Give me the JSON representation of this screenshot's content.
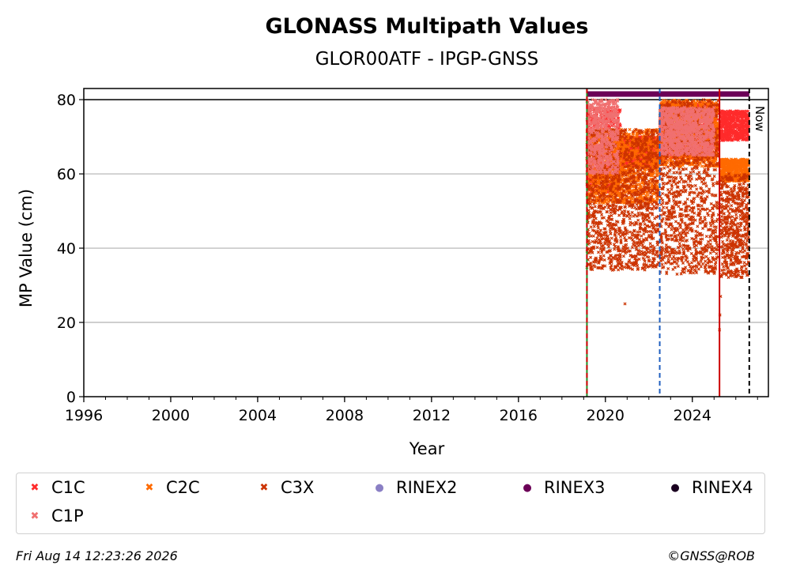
{
  "chart_data": {
    "type": "scatter",
    "title": "GLONASS Multipath Values",
    "subtitle": "GLOR00ATF - IPGP-GNSS",
    "xlabel": "Year",
    "ylabel": "MP Value (cm)",
    "xlim": [
      1996,
      2027.5
    ],
    "ylim": [
      0,
      83
    ],
    "x_ticks": [
      "1996",
      "2000",
      "2004",
      "2008",
      "2012",
      "2016",
      "2020",
      "2024"
    ],
    "y_ticks": [
      "0",
      "20",
      "40",
      "60",
      "80"
    ],
    "grid": "horizontal",
    "threshold_line": 80,
    "now_label": "Now",
    "vertical_lines": [
      {
        "x": 2019.15,
        "color": "#228b22",
        "style": "solid"
      },
      {
        "x": 2019.15,
        "color": "#cc0000",
        "style": "dashed"
      },
      {
        "x": 2022.5,
        "color": "#1f5fbf",
        "style": "dashed"
      },
      {
        "x": 2025.25,
        "color": "#cc0000",
        "style": "solid"
      },
      {
        "x": 2026.62,
        "color": "#000000",
        "style": "dashed"
      }
    ],
    "rinex_bar": {
      "series": "RINEX3",
      "x_start": 2019.15,
      "x_end": 2026.62,
      "y": 81.5
    },
    "series": [
      {
        "name": "C1C",
        "color": "#ff2b2b",
        "marker": "x",
        "segments": [
          {
            "x_start": 2019.15,
            "x_end": 2020.7,
            "y_range": [
              55,
              78
            ]
          },
          {
            "x_start": 2020.7,
            "x_end": 2022.45,
            "y_range": [
              62,
              70
            ]
          },
          {
            "x_start": 2022.5,
            "x_end": 2025.2,
            "y_range": [
              64,
              79
            ]
          },
          {
            "x_start": 2025.3,
            "x_end": 2026.6,
            "y_range": [
              69,
              77
            ]
          }
        ]
      },
      {
        "name": "C2C",
        "color": "#ff6a00",
        "marker": "x",
        "segments": [
          {
            "x_start": 2019.15,
            "x_end": 2022.45,
            "y_range": [
              52,
              72
            ]
          },
          {
            "x_start": 2022.5,
            "x_end": 2025.2,
            "y_range": [
              62,
              80
            ]
          },
          {
            "x_start": 2025.3,
            "x_end": 2026.6,
            "y_range": [
              58,
              64
            ]
          }
        ]
      },
      {
        "name": "C3X",
        "color": "#cc3300",
        "marker": "x",
        "segments": [
          {
            "x_start": 2019.15,
            "x_end": 2022.45,
            "y_range": [
              34,
              72
            ]
          },
          {
            "x_start": 2022.5,
            "x_end": 2025.2,
            "y_range": [
              33,
              80
            ]
          },
          {
            "x_start": 2025.3,
            "x_end": 2026.6,
            "y_range": [
              32,
              60
            ]
          }
        ]
      },
      {
        "name": "C1P",
        "color": "#f07070",
        "marker": "x",
        "segments": [
          {
            "x_start": 2019.15,
            "x_end": 2020.6,
            "y_range": [
              60,
              80
            ]
          },
          {
            "x_start": 2022.5,
            "x_end": 2025.0,
            "y_range": [
              65,
              78
            ]
          }
        ]
      },
      {
        "name": "RINEX2",
        "color": "#8a7fc4",
        "marker": "dot",
        "segments": []
      },
      {
        "name": "RINEX3",
        "color": "#6b0057",
        "marker": "dot",
        "segments": []
      },
      {
        "name": "RINEX4",
        "color": "#1a0020",
        "marker": "dot",
        "segments": []
      }
    ],
    "outliers": [
      {
        "x": 2020.9,
        "y": 25
      },
      {
        "x": 2025.25,
        "y": 18
      },
      {
        "x": 2025.27,
        "y": 22
      },
      {
        "x": 2025.3,
        "y": 27
      }
    ]
  },
  "legend": {
    "items": [
      {
        "label": "C1C",
        "color": "#ff2b2b",
        "glyph": "✖"
      },
      {
        "label": "C2C",
        "color": "#ff6a00",
        "glyph": "✖"
      },
      {
        "label": "C3X",
        "color": "#cc3300",
        "glyph": "✖"
      },
      {
        "label": "RINEX2",
        "color": "#8a7fc4",
        "glyph": "●"
      },
      {
        "label": "RINEX3",
        "color": "#6b0057",
        "glyph": "●"
      },
      {
        "label": "RINEX4",
        "color": "#1a0020",
        "glyph": "●"
      },
      {
        "label": "C1P",
        "color": "#f07070",
        "glyph": "✖"
      }
    ]
  },
  "footer": {
    "timestamp": "Fri Aug 14 12:23:26 2026",
    "copyright": "©GNSS@ROB"
  }
}
